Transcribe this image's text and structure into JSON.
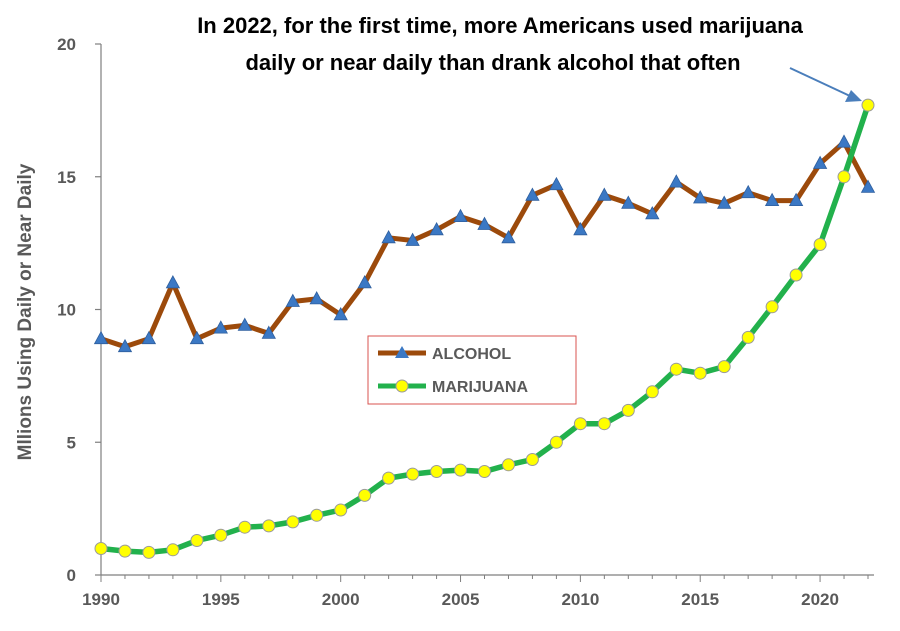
{
  "chart_data": {
    "type": "line",
    "title": "",
    "annotation": [
      "In 2022, for the first time, more Americans used marijuana",
      "daily or near daily than drank alcohol that often"
    ],
    "xlabel": "",
    "ylabel": "Mllions  Using Daily or Near Daily",
    "xlim": [
      1990,
      2022
    ],
    "ylim": [
      0,
      20
    ],
    "xticks": [
      "1990",
      "1995",
      "2000",
      "2005",
      "2010",
      "2015",
      "2020"
    ],
    "yticks": [
      "0",
      "5",
      "10",
      "15",
      "20"
    ],
    "grid": false,
    "legend": "center",
    "x": [
      1990,
      1991,
      1992,
      1993,
      1994,
      1995,
      1996,
      1997,
      1998,
      1999,
      2000,
      2001,
      2002,
      2003,
      2004,
      2005,
      2006,
      2007,
      2008,
      2009,
      2010,
      2011,
      2012,
      2013,
      2014,
      2015,
      2016,
      2017,
      2018,
      2019,
      2020,
      2021,
      2022
    ],
    "series": [
      {
        "name": "ALCOHOL",
        "color": "#9c4a0b",
        "marker": "triangle",
        "marker_color": "#3b78c4",
        "values": [
          8.9,
          8.6,
          8.9,
          11.0,
          8.9,
          9.3,
          9.4,
          9.1,
          10.3,
          10.4,
          9.8,
          11.0,
          12.7,
          12.6,
          13.0,
          13.5,
          13.2,
          12.7,
          14.3,
          14.7,
          13.0,
          14.3,
          14.0,
          13.6,
          14.8,
          14.2,
          14.0,
          14.4,
          14.1,
          14.1,
          15.5,
          16.3,
          14.6
        ]
      },
      {
        "name": "MARIJUANA",
        "color": "#22b14c",
        "marker": "circle",
        "marker_color": "#ffff00",
        "values": [
          1.0,
          0.9,
          0.85,
          0.95,
          1.3,
          1.5,
          1.8,
          1.85,
          2.0,
          2.25,
          2.45,
          3.0,
          3.65,
          3.8,
          3.9,
          3.95,
          3.9,
          4.15,
          4.35,
          5.0,
          5.7,
          5.7,
          6.2,
          6.9,
          7.75,
          7.6,
          7.85,
          8.95,
          10.1,
          11.3,
          12.45,
          15.0,
          17.7
        ]
      }
    ]
  }
}
